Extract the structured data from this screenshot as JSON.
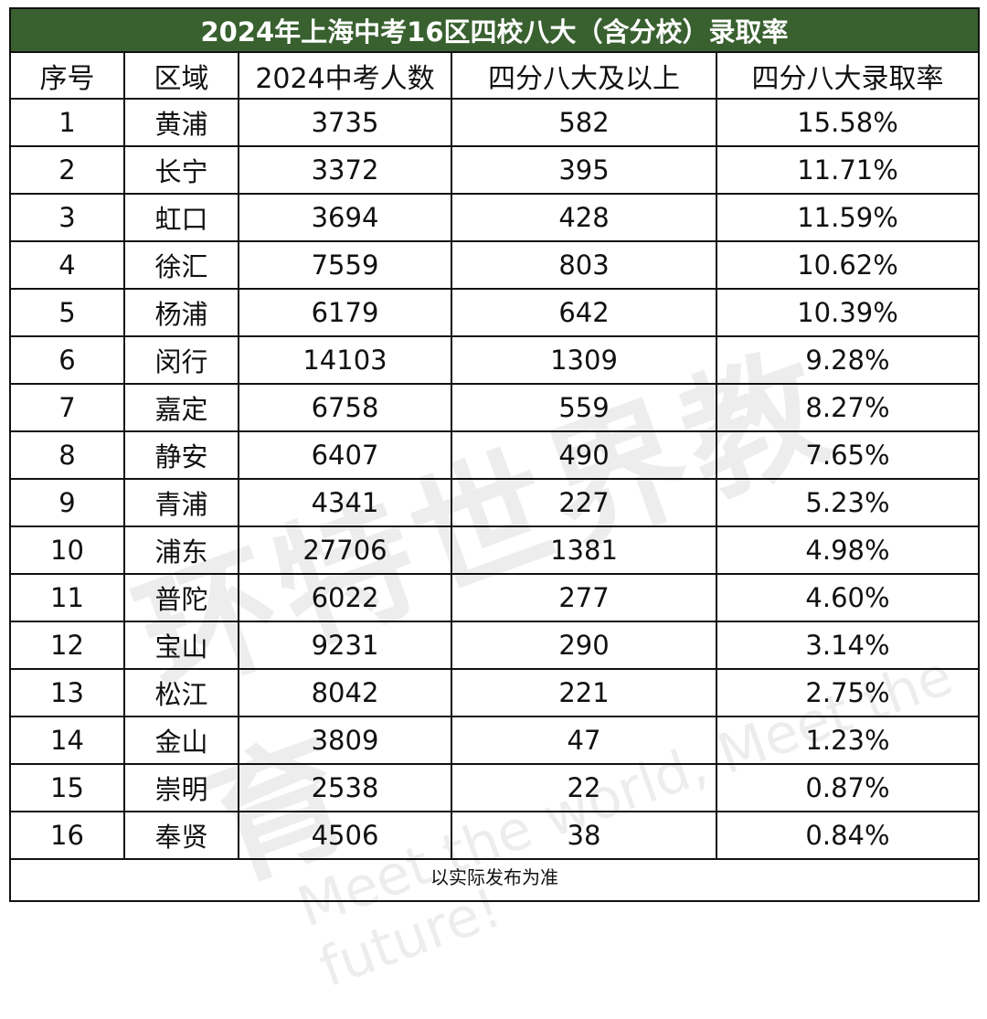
{
  "title": "2024年上海中考16区四校八大（含分校）录取率",
  "columns": [
    "序号",
    "区域",
    "2024中考人数",
    "四分八大及以上",
    "四分八大录取率"
  ],
  "rows": [
    [
      "1",
      "黄浦",
      "3735",
      "582",
      "15.58%"
    ],
    [
      "2",
      "长宁",
      "3372",
      "395",
      "11.71%"
    ],
    [
      "3",
      "虹口",
      "3694",
      "428",
      "11.59%"
    ],
    [
      "4",
      "徐汇",
      "7559",
      "803",
      "10.62%"
    ],
    [
      "5",
      "杨浦",
      "6179",
      "642",
      "10.39%"
    ],
    [
      "6",
      "闵行",
      "14103",
      "1309",
      "9.28%"
    ],
    [
      "7",
      "嘉定",
      "6758",
      "559",
      "8.27%"
    ],
    [
      "8",
      "静安",
      "6407",
      "490",
      "7.65%"
    ],
    [
      "9",
      "青浦",
      "4341",
      "227",
      "5.23%"
    ],
    [
      "10",
      "浦东",
      "27706",
      "1381",
      "4.98%"
    ],
    [
      "11",
      "普陀",
      "6022",
      "277",
      "4.60%"
    ],
    [
      "12",
      "宝山",
      "9231",
      "290",
      "3.14%"
    ],
    [
      "13",
      "松江",
      "8042",
      "221",
      "2.75%"
    ],
    [
      "14",
      "金山",
      "3809",
      "47",
      "1.23%"
    ],
    [
      "15",
      "崇明",
      "2538",
      "22",
      "0.87%"
    ],
    [
      "16",
      "奉贤",
      "4506",
      "38",
      "0.84%"
    ]
  ],
  "note": "以实际发布为准",
  "watermark": {
    "main": "环特世界教育",
    "sub": "Meet the world, Meet the future!"
  },
  "colors": {
    "title_bg": "#39602f",
    "title_text": "#ffffff",
    "border": "#111111"
  }
}
